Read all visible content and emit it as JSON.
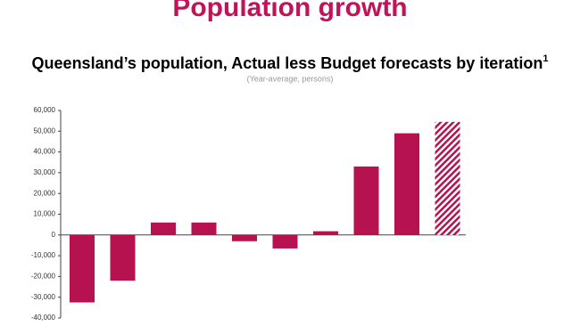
{
  "chart_data": {
    "type": "bar",
    "page_title": "Population growth",
    "title": "Queensland’s population, Actual less Budget forecasts by iteration",
    "title_note": "1",
    "subtitle": "(Year-average, persons)",
    "categories": [
      null,
      null,
      null,
      null,
      null,
      null,
      null,
      null,
      null,
      null
    ],
    "values": [
      -32500,
      -22000,
      6000,
      6000,
      -3000,
      -6500,
      1800,
      33000,
      49000,
      54500
    ],
    "hatched": [
      false,
      false,
      false,
      false,
      false,
      false,
      false,
      false,
      false,
      true
    ],
    "color": "#b5124f",
    "ylim": [
      -40000,
      60000
    ],
    "yticks": [
      {
        "value": -40000,
        "label": "-40,000"
      },
      {
        "value": -30000,
        "label": "-30,000"
      },
      {
        "value": -20000,
        "label": "-20,000"
      },
      {
        "value": -10000,
        "label": "-10,000"
      },
      0,
      {
        "value": 10000,
        "label": "10,000"
      },
      {
        "value": 20000,
        "label": "20,000"
      },
      {
        "value": 30000,
        "label": "30,000"
      },
      {
        "value": 40000,
        "label": "40,000"
      },
      {
        "value": 50000,
        "label": "50,000"
      },
      {
        "value": 60000,
        "label": "60,000"
      }
    ]
  }
}
